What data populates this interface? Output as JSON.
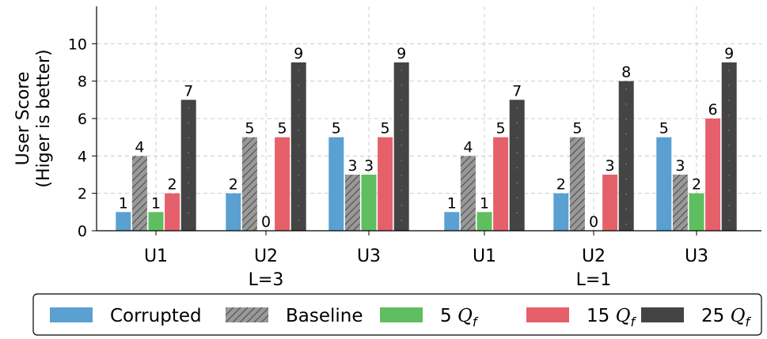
{
  "chart_data": {
    "type": "bar",
    "ylabel": [
      "User Score",
      "(Higer is better)"
    ],
    "ylim": [
      0,
      12
    ],
    "yticks": [
      0,
      2,
      4,
      6,
      8,
      10
    ],
    "grid": true,
    "legend_position": "bottom",
    "groups": [
      {
        "categories": [
          {
            "label": "U1",
            "sublabel": ""
          },
          {
            "label": "U2",
            "sublabel": "L=3"
          },
          {
            "label": "U3",
            "sublabel": ""
          }
        ]
      },
      {
        "categories": [
          {
            "label": "U1",
            "sublabel": ""
          },
          {
            "label": "U2",
            "sublabel": "L=1"
          },
          {
            "label": "U3",
            "sublabel": ""
          }
        ]
      }
    ],
    "series": [
      {
        "name": "Corrupted",
        "color": "#5aa0d0",
        "pattern": "solid",
        "values": [
          1,
          2,
          5,
          1,
          2,
          5
        ]
      },
      {
        "name": "Baseline",
        "color": "#999999",
        "pattern": "hatch",
        "values": [
          4,
          5,
          3,
          4,
          5,
          3
        ]
      },
      {
        "name": "5 Q_f",
        "legend_number": "5",
        "legend_symbol": "Q",
        "legend_sub": "f",
        "color": "#5fbf60",
        "pattern": "solid",
        "values": [
          1,
          0,
          3,
          1,
          0,
          2
        ]
      },
      {
        "name": "15 Q_f",
        "legend_number": "15",
        "legend_symbol": "Q",
        "legend_sub": "f",
        "color": "#e5606a",
        "pattern": "solid",
        "values": [
          2,
          5,
          5,
          5,
          3,
          6
        ]
      },
      {
        "name": "25 Q_f",
        "legend_number": "25",
        "legend_symbol": "Q",
        "legend_sub": "f",
        "color": "#444444",
        "pattern": "solid",
        "values": [
          7,
          9,
          9,
          7,
          8,
          9
        ]
      }
    ]
  }
}
